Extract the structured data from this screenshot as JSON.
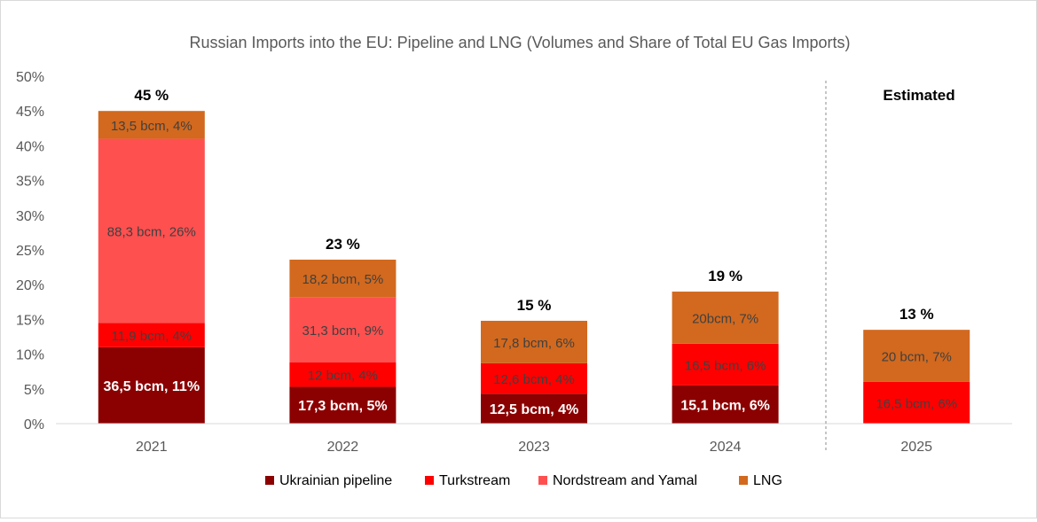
{
  "chart_data": {
    "type": "bar",
    "stacked": true,
    "title": "Russian Imports into the EU: Pipeline and LNG (Volumes and Share of Total EU Gas Imports)",
    "xlabel": "",
    "ylabel": "",
    "ylim": [
      0,
      50
    ],
    "yticks": [
      "0%",
      "5%",
      "10%",
      "15%",
      "20%",
      "25%",
      "30%",
      "35%",
      "40%",
      "45%",
      "50%"
    ],
    "grid": false,
    "legend": "bottom",
    "categories": [
      "2021",
      "2022",
      "2023",
      "2024",
      "2025"
    ],
    "totals": [
      "45 %",
      "23 %",
      "15 %",
      "19 %",
      "13 %"
    ],
    "annotation": "Estimated",
    "series": [
      {
        "name": "Ukrainian pipeline",
        "color": "#8b0000",
        "values": [
          11,
          5.3,
          4.3,
          5.5,
          0
        ],
        "labels": [
          "36,5 bcm, 11%",
          "17,3 bcm, 5%",
          "12,5 bcm, 4%",
          "15,1 bcm, 6%",
          ""
        ]
      },
      {
        "name": "Turkstream",
        "color": "#ff0000",
        "values": [
          3.5,
          3.5,
          4.4,
          6,
          6
        ],
        "labels": [
          "11,9 bcm, 4%",
          "12 bcm, 4%",
          "12,6 bcm, 4%",
          "16,5 bcm, 6%",
          "16,5 bcm, 6%"
        ]
      },
      {
        "name": "Nordstream and Yamal",
        "color": "#ff5050",
        "values": [
          26.5,
          9.4,
          0,
          0,
          0
        ],
        "labels": [
          "88,3 bcm, 26%",
          "31,3 bcm, 9%",
          "",
          "",
          ""
        ]
      },
      {
        "name": "LNG",
        "color": "#d2691e",
        "values": [
          4,
          5.4,
          6.1,
          7.5,
          7.5
        ],
        "labels": [
          "13,5 bcm, 4%",
          "18,2 bcm, 5%",
          "17,8 bcm, 6%",
          "20bcm, 7%",
          "20 bcm, 7%"
        ]
      }
    ]
  }
}
